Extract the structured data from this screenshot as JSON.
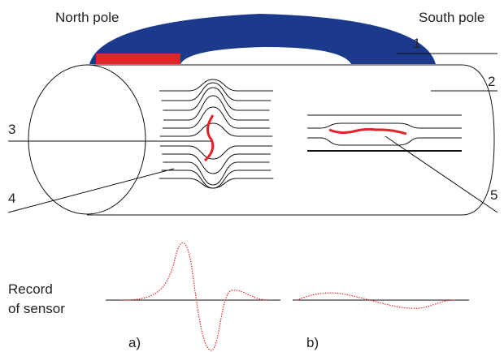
{
  "poles": {
    "north": "North pole",
    "south": "South pole"
  },
  "callouts": [
    "1",
    "2",
    "3",
    "4",
    "5"
  ],
  "sensor_label": [
    "Record",
    "of sensor"
  ],
  "panels": [
    "a)",
    "b)"
  ]
}
